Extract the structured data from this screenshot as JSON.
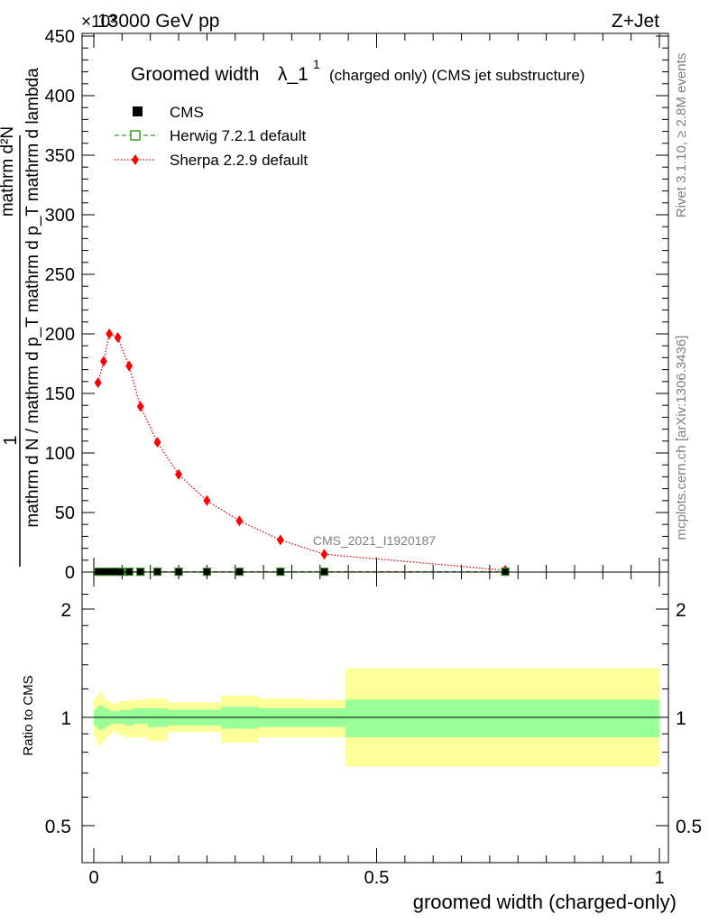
{
  "header": {
    "energy_label": "13000 GeV pp",
    "process_label": "Z+Jet",
    "exponent_label": "×10³",
    "rivet_label": "Rivet 3.1.10, ≥ 2.8M events",
    "mcplots_label": "mcplots.cern.ch [arXiv:1306.3436]",
    "analysis_label": "CMS_2021_I1920187"
  },
  "chart_data": [
    {
      "type": "line",
      "title": "Groomed width",
      "title_symbol": "λ_1",
      "title_superscript": "1",
      "title_suffix": "(charged only) (CMS jet substructure)",
      "ylabel_parts": [
        "1",
        "mathrm d N / mathrm d p_T mathrm d p_T mathrm d lambda",
        "mathrm d²N"
      ],
      "ylim": [
        0,
        450
      ],
      "y_ticks": [
        0,
        50,
        100,
        150,
        200,
        250,
        300,
        350,
        400,
        450
      ],
      "xlim": [
        0,
        1
      ],
      "legend_position": "top-left",
      "series": [
        {
          "name": "CMS",
          "color": "#000000",
          "x": [
            0.0075,
            0.0175,
            0.0275,
            0.0375,
            0.0475,
            0.0625,
            0.0825,
            0.1125,
            0.15,
            0.2,
            0.2575,
            0.33,
            0.4075,
            0.7275
          ],
          "y": [
            0.3,
            0.3,
            0.3,
            0.3,
            0.3,
            0.3,
            0.3,
            0.3,
            0.3,
            0.3,
            0.3,
            0.3,
            0.3,
            0.3
          ]
        },
        {
          "name": "Herwig 7.2.1 default",
          "color": "#3a9d23",
          "x": [
            0.0075,
            0.0175,
            0.0275,
            0.0375,
            0.0475,
            0.0625,
            0.0825,
            0.1125,
            0.15,
            0.2,
            0.2575,
            0.33,
            0.4075,
            0.7275
          ],
          "y": [
            0.3,
            0.3,
            0.3,
            0.3,
            0.3,
            0.3,
            0.3,
            0.3,
            0.3,
            0.3,
            0.3,
            0.3,
            0.3,
            0.3
          ]
        },
        {
          "name": "Sherpa 2.2.9 default",
          "color": "#ff0000",
          "x": [
            0.0075,
            0.0175,
            0.0275,
            0.0425,
            0.0625,
            0.0825,
            0.1125,
            0.15,
            0.2,
            0.2575,
            0.33,
            0.4075,
            0.7275
          ],
          "y": [
            159,
            177,
            200,
            197,
            173,
            139,
            109,
            82,
            60,
            43,
            27,
            15,
            1.5
          ]
        }
      ]
    },
    {
      "type": "area",
      "ylabel": "Ratio to CMS",
      "ylog": true,
      "y_ticks": [
        0.5,
        1,
        2
      ],
      "ylim": [
        0.4,
        2.45
      ],
      "xlabel": "groomed width (charged-only)",
      "x_ticks": [
        0,
        0.5,
        1
      ],
      "xlim": [
        0,
        1
      ],
      "bands": {
        "edges": [
          0,
          0.005,
          0.01,
          0.015,
          0.02,
          0.025,
          0.03,
          0.035,
          0.04,
          0.045,
          0.055,
          0.07,
          0.095,
          0.13,
          0.175,
          0.225,
          0.29,
          0.37,
          0.445,
          1.0
        ],
        "stat_low": [
          0.95,
          0.93,
          0.92,
          0.93,
          0.94,
          0.95,
          0.96,
          0.96,
          0.96,
          0.96,
          0.95,
          0.96,
          0.94,
          0.95,
          0.95,
          0.93,
          0.94,
          0.94,
          0.88
        ],
        "stat_high": [
          1.05,
          1.07,
          1.08,
          1.07,
          1.06,
          1.05,
          1.04,
          1.04,
          1.04,
          1.05,
          1.05,
          1.06,
          1.06,
          1.05,
          1.05,
          1.07,
          1.06,
          1.06,
          1.12
        ],
        "syst_low": [
          0.88,
          0.85,
          0.83,
          0.86,
          0.88,
          0.89,
          0.91,
          0.91,
          0.9,
          0.89,
          0.88,
          0.88,
          0.86,
          0.91,
          0.91,
          0.85,
          0.88,
          0.88,
          0.73
        ],
        "syst_high": [
          1.13,
          1.15,
          1.18,
          1.14,
          1.12,
          1.11,
          1.09,
          1.09,
          1.1,
          1.11,
          1.11,
          1.12,
          1.13,
          1.1,
          1.1,
          1.15,
          1.13,
          1.12,
          1.37
        ]
      },
      "stat_color": "#99ff99",
      "syst_color": "#ffff99",
      "reference_value": 1
    }
  ]
}
